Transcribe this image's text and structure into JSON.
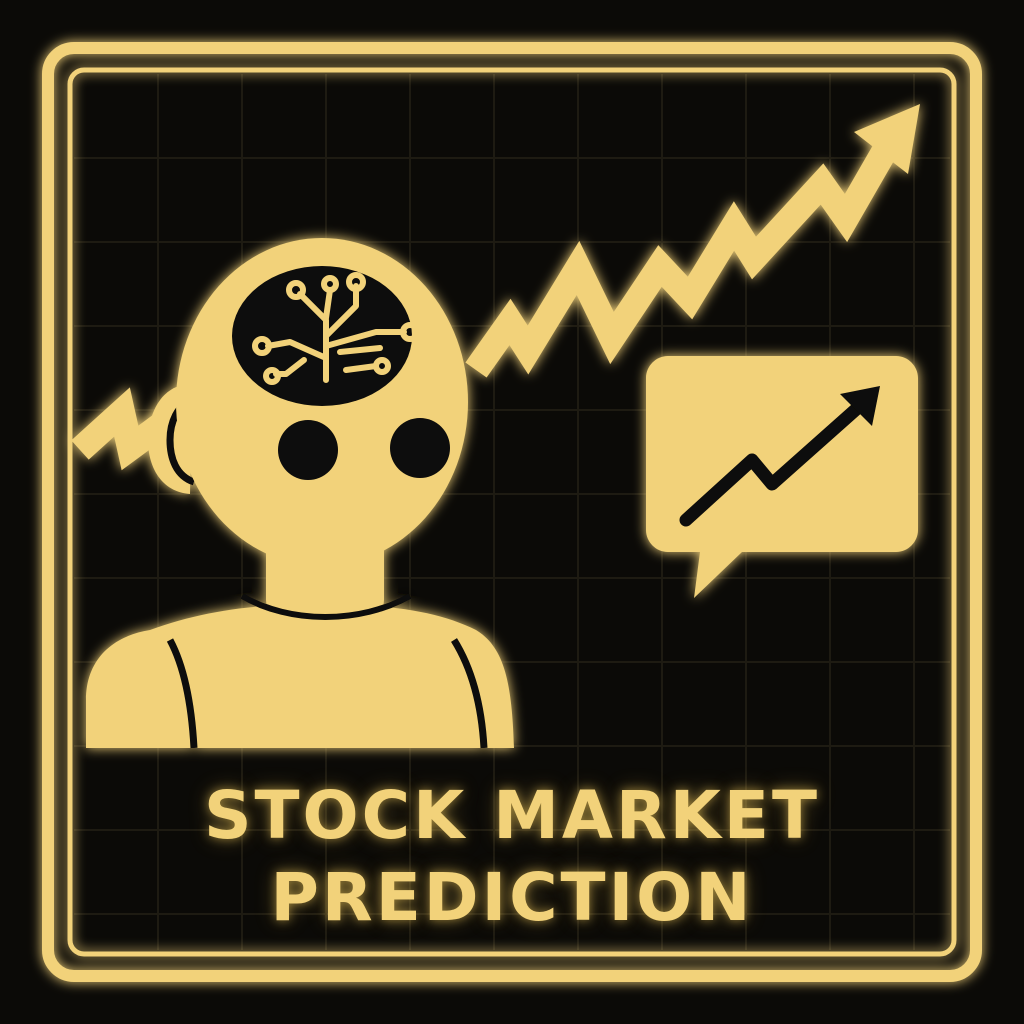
{
  "caption": {
    "line1": "STOCK MARKET",
    "line2": "PREDICTION"
  },
  "colors": {
    "accent": "#f2d27a",
    "background": "#0b0a07",
    "grid": "#1e1b12"
  },
  "icons": {
    "robot": "robot-head-icon",
    "brain": "circuit-brain-icon",
    "trend": "trend-arrow-icon",
    "bubble": "chart-speech-bubble-icon"
  }
}
